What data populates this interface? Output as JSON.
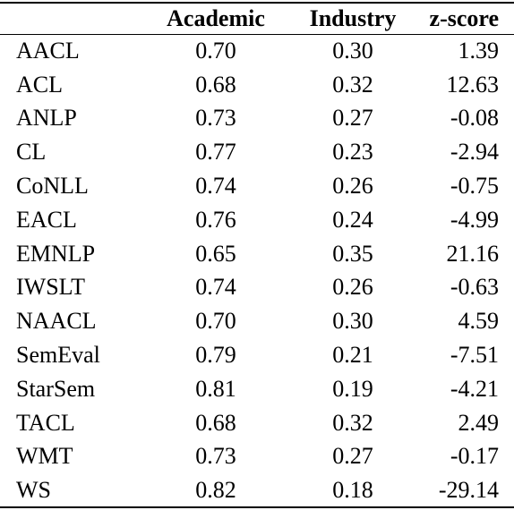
{
  "table": {
    "columns": [
      "",
      "Academic",
      "Industry",
      "z-score"
    ],
    "rows": [
      {
        "venue": "AACL",
        "academic": "0.70",
        "industry": "0.30",
        "zscore": "1.39"
      },
      {
        "venue": "ACL",
        "academic": "0.68",
        "industry": "0.32",
        "zscore": "12.63"
      },
      {
        "venue": "ANLP",
        "academic": "0.73",
        "industry": "0.27",
        "zscore": "-0.08"
      },
      {
        "venue": "CL",
        "academic": "0.77",
        "industry": "0.23",
        "zscore": "-2.94"
      },
      {
        "venue": "CoNLL",
        "academic": "0.74",
        "industry": "0.26",
        "zscore": "-0.75"
      },
      {
        "venue": "EACL",
        "academic": "0.76",
        "industry": "0.24",
        "zscore": "-4.99"
      },
      {
        "venue": "EMNLP",
        "academic": "0.65",
        "industry": "0.35",
        "zscore": "21.16"
      },
      {
        "venue": "IWSLT",
        "academic": "0.74",
        "industry": "0.26",
        "zscore": "-0.63"
      },
      {
        "venue": "NAACL",
        "academic": "0.70",
        "industry": "0.30",
        "zscore": "4.59"
      },
      {
        "venue": "SemEval",
        "academic": "0.79",
        "industry": "0.21",
        "zscore": "-7.51"
      },
      {
        "venue": "StarSem",
        "academic": "0.81",
        "industry": "0.19",
        "zscore": "-4.21"
      },
      {
        "venue": "TACL",
        "academic": "0.68",
        "industry": "0.32",
        "zscore": "2.49"
      },
      {
        "venue": "WMT",
        "academic": "0.73",
        "industry": "0.27",
        "zscore": "-0.17"
      },
      {
        "venue": "WS",
        "academic": "0.82",
        "industry": "0.18",
        "zscore": "-29.14"
      }
    ]
  }
}
